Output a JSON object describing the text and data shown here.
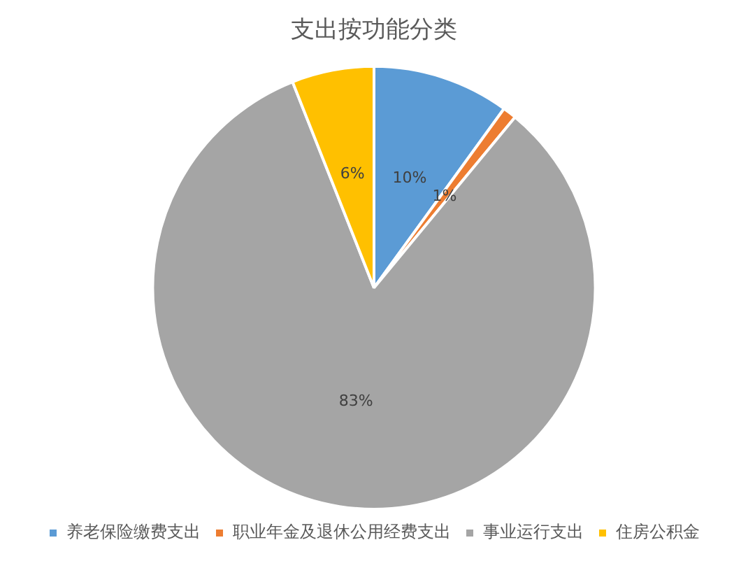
{
  "chart_data": {
    "type": "pie",
    "title": "支出按功能分类",
    "categories": [
      "养老保险缴费支出",
      "职业年金及退休公用经费支出",
      "事业运行支出",
      "住房公积金"
    ],
    "values": [
      10,
      1,
      83,
      6
    ],
    "colors": [
      "#5b9bd5",
      "#ed7d31",
      "#a5a5a5",
      "#ffc000"
    ],
    "value_labels": [
      "10%",
      "1%",
      "83%",
      "6%"
    ],
    "legend": "bottom"
  }
}
